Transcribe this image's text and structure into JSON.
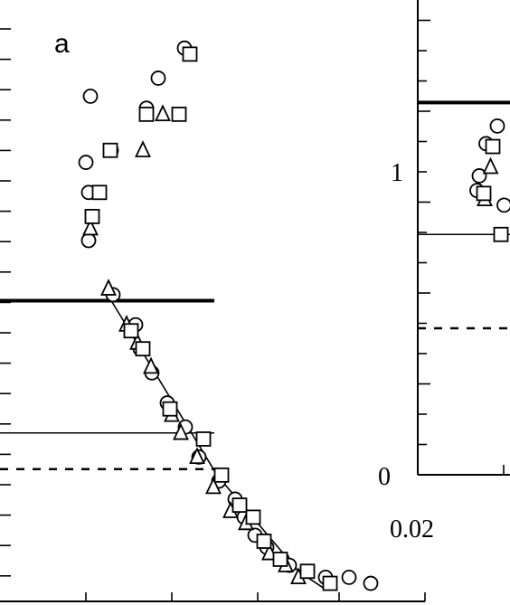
{
  "chart_data": [
    {
      "type": "scatter",
      "panel_label": "a",
      "title": "",
      "xlabel": "",
      "ylabel": "",
      "x_tick_labels": [],
      "y_tick_labels": [],
      "grid": false,
      "legend": "none",
      "reference_lines": [
        {
          "style": "thick-solid",
          "y": 0.5
        },
        {
          "style": "thin-solid",
          "y": 0.28
        },
        {
          "style": "dashed",
          "y": 0.22
        }
      ],
      "fit_line": [
        [
          1.15,
          0.52
        ],
        [
          2.4,
          0.21
        ],
        [
          3.3,
          0.05
        ],
        [
          3.6,
          0.02
        ]
      ],
      "series": [
        {
          "marker": "circle",
          "points": [
            [
              0.98,
              0.68
            ],
            [
              0.98,
              0.6
            ],
            [
              1.23,
              0.75
            ],
            [
              1.75,
              0.87
            ],
            [
              1.62,
              0.82
            ],
            [
              2.04,
              0.92
            ],
            [
              1.0,
              0.84
            ],
            [
              0.95,
              0.73
            ],
            [
              1.25,
              0.51
            ],
            [
              1.5,
              0.46
            ],
            [
              1.55,
              0.42
            ],
            [
              1.68,
              0.38
            ],
            [
              1.85,
              0.33
            ],
            [
              2.05,
              0.29
            ],
            [
              2.2,
              0.24
            ],
            [
              2.42,
              0.2
            ],
            [
              2.6,
              0.17
            ],
            [
              2.7,
              0.14
            ],
            [
              2.82,
              0.11
            ],
            [
              2.95,
              0.09
            ],
            [
              3.12,
              0.07
            ],
            [
              3.2,
              0.06
            ],
            [
              3.4,
              0.05
            ],
            [
              3.6,
              0.04
            ],
            [
              3.86,
              0.04
            ],
            [
              4.1,
              0.03
            ]
          ]
        },
        {
          "marker": "triangle",
          "points": [
            [
              1.0,
              0.62
            ],
            [
              1.2,
              0.52
            ],
            [
              1.4,
              0.46
            ],
            [
              1.52,
              0.43
            ],
            [
              1.67,
              0.39
            ],
            [
              1.9,
              0.31
            ],
            [
              2.0,
              0.28
            ],
            [
              2.18,
              0.24
            ],
            [
              2.36,
              0.19
            ],
            [
              2.55,
              0.15
            ],
            [
              2.72,
              0.13
            ],
            [
              2.98,
              0.08
            ],
            [
              3.16,
              0.06
            ],
            [
              3.3,
              0.04
            ],
            [
              1.8,
              0.81
            ],
            [
              1.58,
              0.75
            ]
          ]
        },
        {
          "marker": "square",
          "points": [
            [
              1.02,
              0.64
            ],
            [
              1.1,
              0.68
            ],
            [
              1.22,
              0.75
            ],
            [
              1.62,
              0.81
            ],
            [
              1.98,
              0.81
            ],
            [
              2.1,
              0.91
            ],
            [
              1.45,
              0.45
            ],
            [
              1.58,
              0.42
            ],
            [
              1.88,
              0.32
            ],
            [
              2.25,
              0.27
            ],
            [
              2.45,
              0.21
            ],
            [
              2.65,
              0.16
            ],
            [
              2.8,
              0.14
            ],
            [
              2.92,
              0.1
            ],
            [
              3.1,
              0.07
            ],
            [
              3.4,
              0.05
            ],
            [
              3.65,
              0.03
            ]
          ]
        }
      ]
    },
    {
      "type": "scatter",
      "panel_label": "",
      "title": "",
      "xlabel": "",
      "ylabel": "",
      "y_tick_labels": [
        "0",
        "1"
      ],
      "x_tick_labels": [
        "0.02"
      ],
      "ylim": [
        0,
        1.62
      ],
      "grid": false,
      "legend": "none",
      "reference_lines": [
        {
          "style": "thick-solid",
          "y": 1.27
        },
        {
          "style": "thin-solid",
          "y": 0.82
        },
        {
          "style": "dashed",
          "y": 0.5
        }
      ],
      "series": [
        {
          "marker": "circle",
          "points": [
            [
              0.25,
              0.97
            ],
            [
              0.3,
              1.02
            ],
            [
              0.45,
              1.13
            ],
            [
              0.7,
              1.19
            ],
            [
              0.85,
              0.92
            ]
          ]
        },
        {
          "marker": "triangle",
          "points": [
            [
              0.42,
              0.94
            ],
            [
              0.55,
              1.05
            ]
          ]
        },
        {
          "marker": "square",
          "points": [
            [
              0.4,
              0.96
            ],
            [
              0.6,
              1.12
            ],
            [
              0.78,
              0.82
            ]
          ]
        }
      ]
    }
  ]
}
